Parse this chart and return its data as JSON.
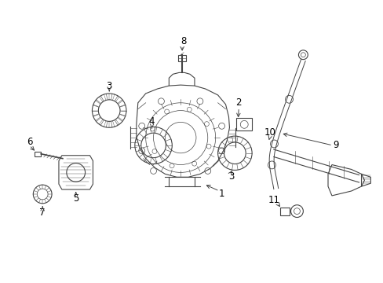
{
  "background_color": "#ffffff",
  "line_color": "#444444",
  "label_color": "#000000",
  "label_fontsize": 8.5,
  "fig_width": 4.89,
  "fig_height": 3.6,
  "dpi": 100
}
